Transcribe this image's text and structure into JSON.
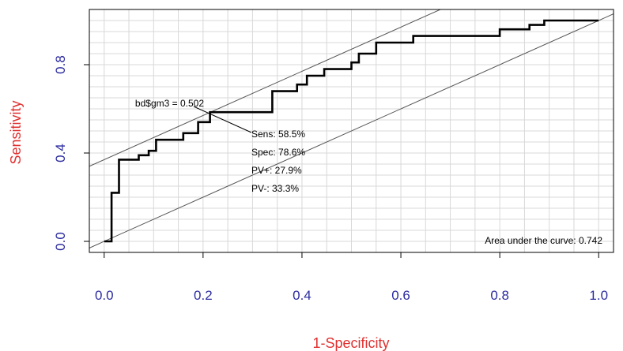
{
  "chart_data": {
    "type": "line",
    "title": "",
    "xlabel": "1-Specificity",
    "ylabel": "Sensitivity",
    "xlim": [
      -0.03,
      1.03
    ],
    "ylim": [
      -0.05,
      1.05
    ],
    "x_ticks": [
      "0.0",
      "0.2",
      "0.4",
      "0.6",
      "0.8",
      "1.0"
    ],
    "y_ticks": [
      "0.0",
      "0.4",
      "0.8"
    ],
    "grid": true,
    "series": [
      {
        "points": [
          [
            0.0,
            0.0
          ],
          [
            0.015,
            0.0
          ],
          [
            0.015,
            0.22
          ],
          [
            0.03,
            0.22
          ],
          [
            0.03,
            0.37
          ],
          [
            0.07,
            0.37
          ],
          [
            0.07,
            0.39
          ],
          [
            0.09,
            0.39
          ],
          [
            0.09,
            0.41
          ],
          [
            0.105,
            0.41
          ],
          [
            0.105,
            0.46
          ],
          [
            0.16,
            0.46
          ],
          [
            0.16,
            0.49
          ],
          [
            0.19,
            0.49
          ],
          [
            0.19,
            0.54
          ],
          [
            0.214,
            0.54
          ],
          [
            0.214,
            0.585
          ],
          [
            0.34,
            0.585
          ],
          [
            0.34,
            0.68
          ],
          [
            0.39,
            0.68
          ],
          [
            0.39,
            0.71
          ],
          [
            0.41,
            0.71
          ],
          [
            0.41,
            0.75
          ],
          [
            0.445,
            0.75
          ],
          [
            0.445,
            0.78
          ],
          [
            0.5,
            0.78
          ],
          [
            0.5,
            0.81
          ],
          [
            0.515,
            0.81
          ],
          [
            0.515,
            0.85
          ],
          [
            0.55,
            0.85
          ],
          [
            0.55,
            0.9
          ],
          [
            0.625,
            0.9
          ],
          [
            0.625,
            0.93
          ],
          [
            0.8,
            0.93
          ],
          [
            0.8,
            0.96
          ],
          [
            0.86,
            0.96
          ],
          [
            0.86,
            0.98
          ],
          [
            0.89,
            0.98
          ],
          [
            0.89,
            1.0
          ],
          [
            1.0,
            1.0
          ]
        ]
      }
    ],
    "reference_lines": [
      {
        "intercept": 0.0,
        "slope": 1.0
      },
      {
        "intercept": 0.37,
        "slope": 1.0
      }
    ],
    "highlight_point": {
      "x": 0.214,
      "y": 0.585
    },
    "annotations": {
      "threshold": "bd$gm3 = 0.502",
      "sens": "Sens: 58.5%",
      "spec": "Spec: 78.6%",
      "ppv": "PV+: 27.9%",
      "npv": "PV-: 33.3%",
      "auc": "Area under the curve: 0.742"
    },
    "colors": {
      "curve": "#000000",
      "ticks": "#2b2ba0",
      "axis_title": "#e03030",
      "grid": "#d8d8d8"
    }
  }
}
